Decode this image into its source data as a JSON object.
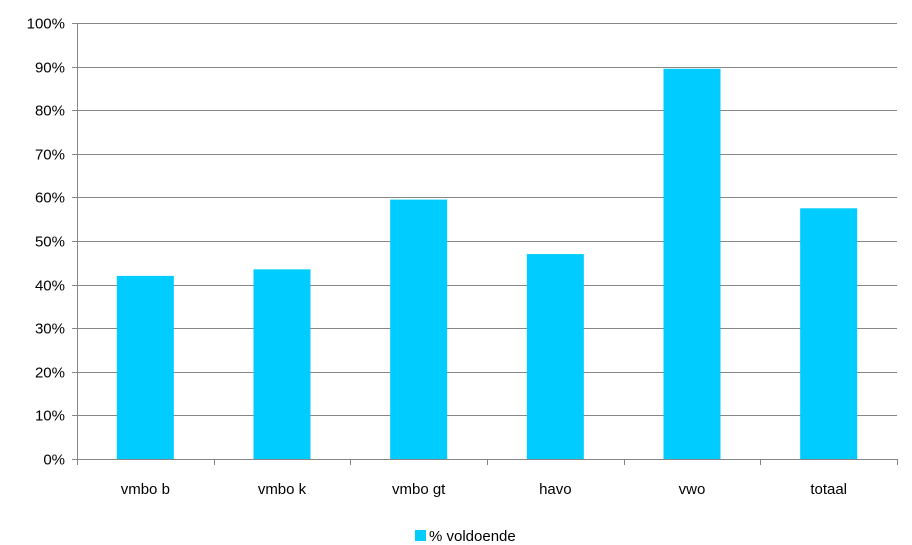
{
  "chart_data": {
    "type": "bar",
    "categories": [
      "vmbo b",
      "vmbo k",
      "vmbo gt",
      "havo",
      "vwo",
      "totaal"
    ],
    "series": [
      {
        "name": "% voldoende",
        "values": [
          0.42,
          0.435,
          0.595,
          0.47,
          0.895,
          0.575
        ],
        "color": "#00CCFF"
      }
    ],
    "ylim": [
      0,
      1
    ],
    "yticks": [
      0,
      0.1,
      0.2,
      0.3,
      0.4,
      0.5,
      0.6,
      0.7,
      0.8,
      0.9,
      1.0
    ],
    "ytick_labels": [
      "0%",
      "10%",
      "20%",
      "30%",
      "40%",
      "50%",
      "60%",
      "70%",
      "80%",
      "90%",
      "100%"
    ],
    "grid": true,
    "legend_position": "bottom"
  }
}
